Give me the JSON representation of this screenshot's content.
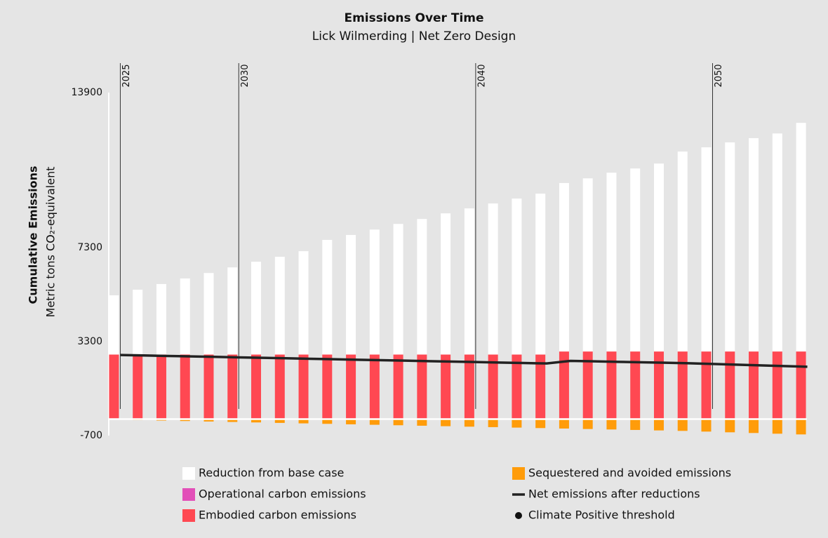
{
  "chart_data": {
    "type": "bar",
    "title": "Emissions Over Time",
    "subtitle": "Lick Wilmerding | Net Zero Design",
    "y_label_main": "Cumulative Emissions",
    "y_label_sub": "Metric tons CO₂-equivalent",
    "x": [
      2025,
      2026,
      2027,
      2028,
      2029,
      2030,
      2031,
      2032,
      2033,
      2034,
      2035,
      2036,
      2037,
      2038,
      2039,
      2040,
      2041,
      2042,
      2043,
      2044,
      2045,
      2046,
      2047,
      2048,
      2049,
      2050,
      2051,
      2052,
      2053,
      2054
    ],
    "xlim": [
      2024.75,
      2054.25
    ],
    "xticks": [
      2025,
      2030,
      2040,
      2050
    ],
    "ylim": [
      -700,
      13900
    ],
    "yticks": [
      -700,
      3300,
      7300,
      13900
    ],
    "series": [
      {
        "name": "Reduction from base case",
        "color": "#ffffff",
        "kind": "bar",
        "values": [
          2520,
          2760,
          3000,
          3240,
          3470,
          3710,
          3950,
          4160,
          4400,
          4880,
          5090,
          5320,
          5560,
          5770,
          6010,
          6220,
          6430,
          6640,
          6850,
          7170,
          7370,
          7610,
          7790,
          8000,
          8510,
          8690,
          8900,
          9080,
          9280,
          9730
        ]
      },
      {
        "name": "Operational carbon emissions",
        "color": "#e24fb8",
        "kind": "bar",
        "values": [
          0,
          0,
          0,
          0,
          0,
          0,
          0,
          0,
          0,
          0,
          0,
          0,
          0,
          0,
          0,
          0,
          0,
          0,
          0,
          0,
          0,
          0,
          0,
          0,
          0,
          0,
          0,
          0,
          0,
          0
        ]
      },
      {
        "name": "Embodied carbon emissions",
        "color": "#ff4852",
        "kind": "bar",
        "values": [
          2750,
          2750,
          2750,
          2750,
          2750,
          2750,
          2750,
          2750,
          2750,
          2750,
          2750,
          2750,
          2750,
          2750,
          2750,
          2750,
          2750,
          2750,
          2750,
          2880,
          2880,
          2880,
          2880,
          2880,
          2880,
          2880,
          2880,
          2880,
          2880,
          2880
        ]
      },
      {
        "name": "Sequestered and avoided emissions",
        "color": "#ff9c0a",
        "kind": "bar",
        "values": [
          -20,
          -40,
          -60,
          -80,
          -100,
          -120,
          -140,
          -160,
          -180,
          -200,
          -220,
          -240,
          -260,
          -280,
          -300,
          -320,
          -340,
          -360,
          -380,
          -400,
          -420,
          -440,
          -460,
          -480,
          -500,
          -530,
          -560,
          -590,
          -620,
          -650
        ]
      },
      {
        "name": "Net emissions after reductions",
        "color": "#222222",
        "kind": "line",
        "values": [
          2730,
          2710,
          2690,
          2670,
          2650,
          2630,
          2610,
          2590,
          2570,
          2550,
          2530,
          2510,
          2490,
          2470,
          2450,
          2430,
          2410,
          2390,
          2370,
          2480,
          2460,
          2440,
          2420,
          2400,
          2380,
          2350,
          2320,
          2290,
          2260,
          2230
        ]
      },
      {
        "name": "Climate Positive threshold",
        "color": "#111111",
        "kind": "point",
        "values": [
          null,
          null,
          null,
          null,
          null,
          null,
          null,
          null,
          null,
          null,
          null,
          null,
          null,
          null,
          null,
          null,
          null,
          null,
          null,
          null,
          null,
          null,
          null,
          null,
          null,
          null,
          null,
          null,
          null,
          null
        ]
      }
    ]
  }
}
